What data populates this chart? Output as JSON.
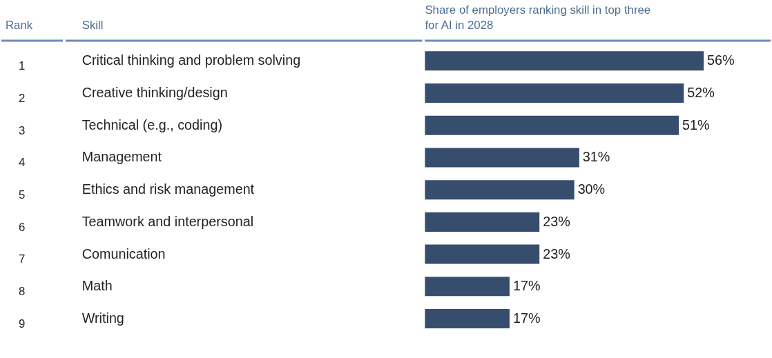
{
  "chart_data": {
    "type": "bar",
    "orientation": "horizontal",
    "xlabel": "Share of employers ranking skill in top three for AI in 2028",
    "ylabel": "Skill",
    "annotations": [
      "Rank"
    ],
    "categories": [
      "Critical thinking and problem solving",
      "Creative thinking/design",
      "Technical (e.g., coding)",
      "Management",
      "Ethics and risk management",
      "Teamwork and interpersonal",
      "Comunication",
      "Math",
      "Writing"
    ],
    "y2_categories": [
      "1",
      "2",
      "3",
      "4",
      "5",
      "6",
      "7",
      "8",
      "9"
    ],
    "values": [
      56,
      52,
      51,
      31,
      30,
      23,
      23,
      17,
      17
    ],
    "value_labels": [
      "56%",
      "52%",
      "51%",
      "31%",
      "30%",
      "23%",
      "23%",
      "17%",
      "17%"
    ],
    "color": "#364d6e"
  }
}
